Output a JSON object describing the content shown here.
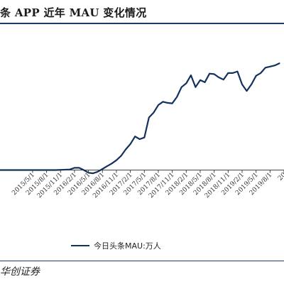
{
  "header": {
    "title": "条 APP 近年 MAU 变化情况"
  },
  "footer": {
    "source": "华创证券"
  },
  "colors": {
    "line": "#13315c",
    "accent": "#1f3a6b",
    "axis": "#444444"
  },
  "chart_data": {
    "type": "line",
    "title": "条 APP 近年 MAU 变化情况",
    "xlabel": "",
    "ylabel": "",
    "grid": false,
    "legend": "bottom",
    "series": [
      {
        "name": "今日头条MAU:万人",
        "values": [
          {
            "x": "2014-10",
            "y": 0
          },
          {
            "x": "2015-01",
            "y": 0
          },
          {
            "x": "2015-04",
            "y": 0
          },
          {
            "x": "2015-07",
            "y": 0
          },
          {
            "x": "2015-10",
            "y": 0
          },
          {
            "x": "2016-01",
            "y": 1
          },
          {
            "x": "2016-02",
            "y": 4
          },
          {
            "x": "2016-03",
            "y": 4
          },
          {
            "x": "2016-04",
            "y": 0
          },
          {
            "x": "2016-05",
            "y": -5
          },
          {
            "x": "2016-06",
            "y": -6
          },
          {
            "x": "2016-07",
            "y": -3
          },
          {
            "x": "2016-08",
            "y": 2
          },
          {
            "x": "2016-09",
            "y": 7
          },
          {
            "x": "2016-10",
            "y": 12
          },
          {
            "x": "2016-11",
            "y": 18
          },
          {
            "x": "2016-12",
            "y": 26
          },
          {
            "x": "2017-01",
            "y": 38
          },
          {
            "x": "2017-02",
            "y": 48
          },
          {
            "x": "2017-03",
            "y": 62
          },
          {
            "x": "2017-04",
            "y": 57
          },
          {
            "x": "2017-05",
            "y": 60
          },
          {
            "x": "2017-06",
            "y": 97
          },
          {
            "x": "2017-07",
            "y": 106
          },
          {
            "x": "2017-08",
            "y": 120
          },
          {
            "x": "2017-09",
            "y": 126
          },
          {
            "x": "2017-10",
            "y": 124
          },
          {
            "x": "2017-11",
            "y": 123
          },
          {
            "x": "2017-12",
            "y": 135
          },
          {
            "x": "2018-01",
            "y": 153
          },
          {
            "x": "2018-02",
            "y": 160
          },
          {
            "x": "2018-03",
            "y": 175
          },
          {
            "x": "2018-04",
            "y": 153
          },
          {
            "x": "2018-05",
            "y": 166
          },
          {
            "x": "2018-06",
            "y": 162
          },
          {
            "x": "2018-07",
            "y": 178
          },
          {
            "x": "2018-08",
            "y": 177
          },
          {
            "x": "2018-09",
            "y": 171
          },
          {
            "x": "2018-10",
            "y": 167
          },
          {
            "x": "2018-11",
            "y": 179
          },
          {
            "x": "2018-12",
            "y": 179
          },
          {
            "x": "2019-01",
            "y": 182
          },
          {
            "x": "2019-02",
            "y": 158
          },
          {
            "x": "2019-03",
            "y": 146
          },
          {
            "x": "2019-04",
            "y": 158
          },
          {
            "x": "2019-05",
            "y": 174
          },
          {
            "x": "2019-06",
            "y": 179
          },
          {
            "x": "2019-07",
            "y": 189
          },
          {
            "x": "2019-08",
            "y": 191
          },
          {
            "x": "2019-09",
            "y": 193
          },
          {
            "x": "2019-10",
            "y": 197
          }
        ]
      }
    ],
    "x_ticks": [
      {
        "x": "2015-05",
        "label": "2015/5/1"
      },
      {
        "x": "2015-08",
        "label": "2015/8/1"
      },
      {
        "x": "2015-11",
        "label": "2015/11/1"
      },
      {
        "x": "2016-02",
        "label": "2016/2/1"
      },
      {
        "x": "2016-05",
        "label": "2016/5/1"
      },
      {
        "x": "2016-08",
        "label": "2016/8/1"
      },
      {
        "x": "2016-11",
        "label": "2016/11/1"
      },
      {
        "x": "2017-02",
        "label": "2017/2/1"
      },
      {
        "x": "2017-05",
        "label": "2017/5/1"
      },
      {
        "x": "2017-08",
        "label": "2017/8/1"
      },
      {
        "x": "2017-11",
        "label": "2017/11/1"
      },
      {
        "x": "2018-02",
        "label": "2018/2/1"
      },
      {
        "x": "2018-05",
        "label": "2018/5/1"
      },
      {
        "x": "2018-08",
        "label": "2018/8/1"
      },
      {
        "x": "2018-11",
        "label": "2018/11/1"
      },
      {
        "x": "2019-02",
        "label": "2019/2/1"
      },
      {
        "x": "2019-05",
        "label": "2019/5/1"
      },
      {
        "x": "2019-08",
        "label": "2019/8/1"
      },
      {
        "x": "2019-11",
        "label": "20"
      }
    ],
    "x_range": [
      "2014-10",
      "2019-11"
    ],
    "y_range": [
      -40,
      230
    ]
  }
}
